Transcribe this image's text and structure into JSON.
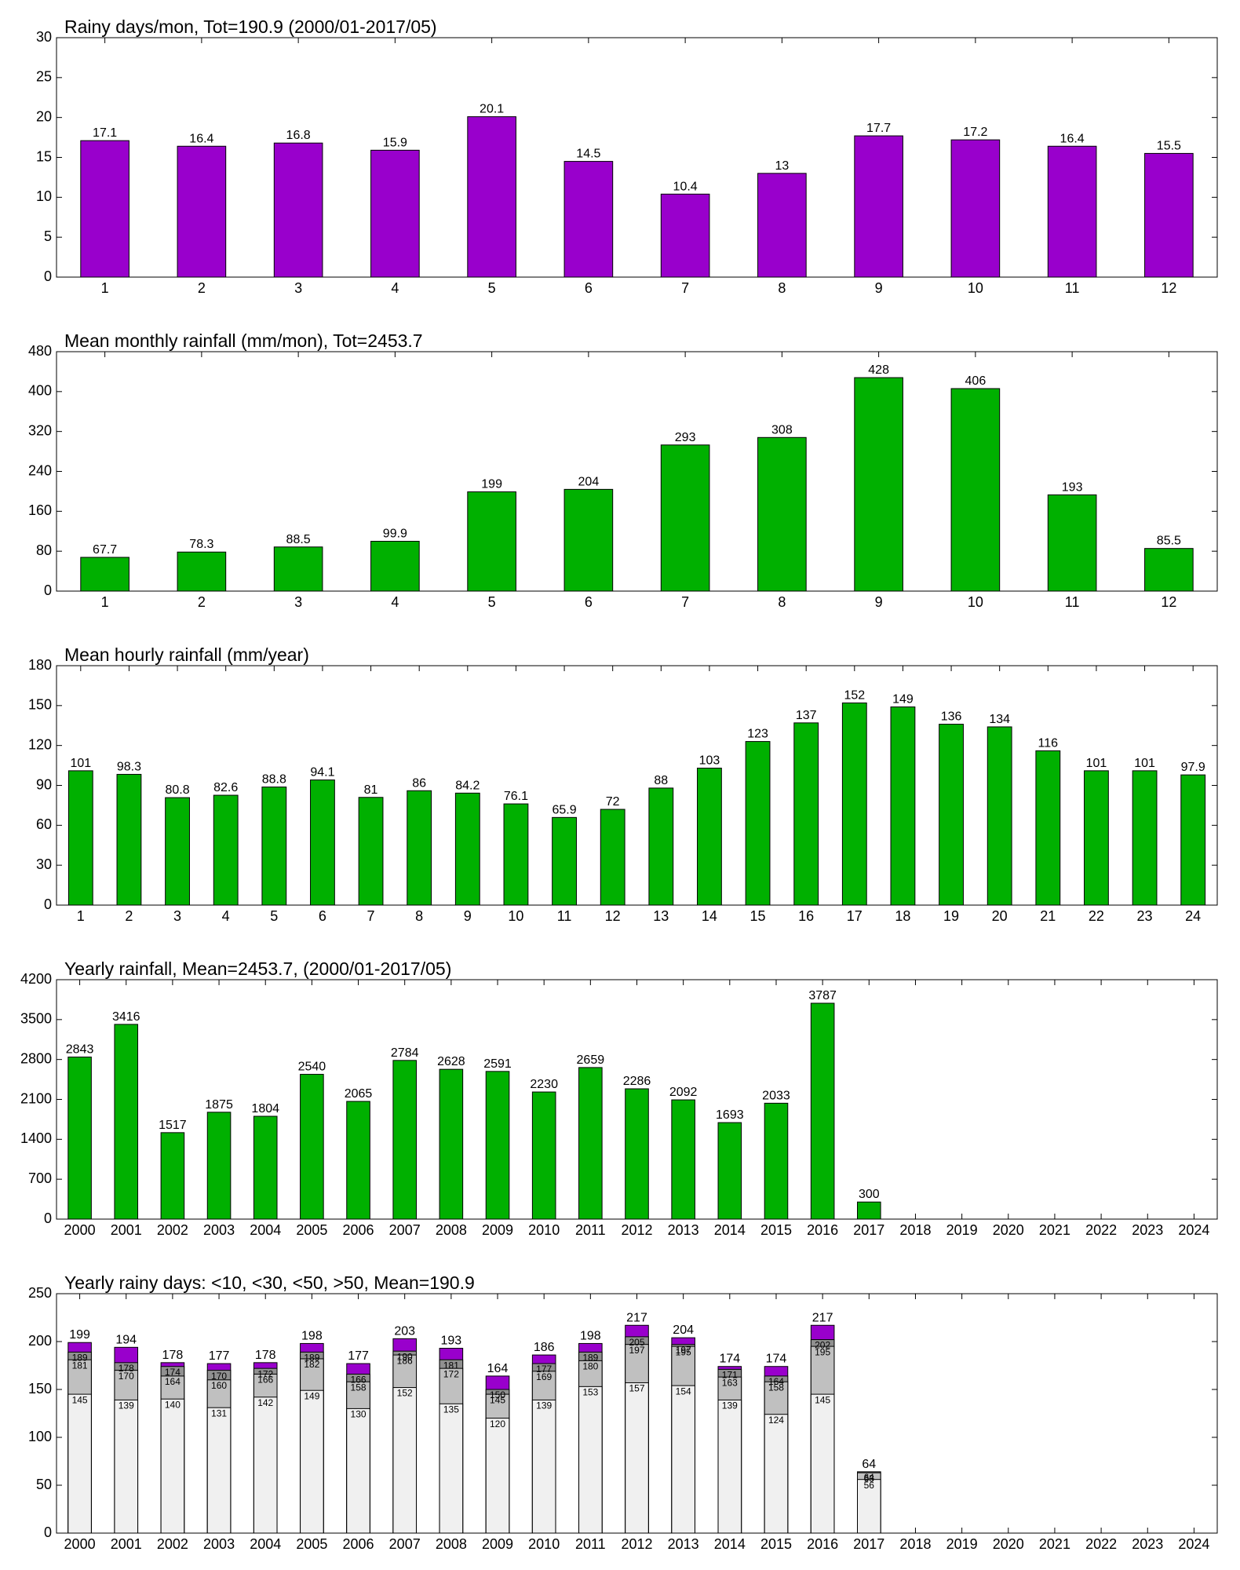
{
  "chart_data": [
    {
      "type": "bar",
      "title": "Rainy days/mon, Tot=190.9 (2000/01-2017/05)",
      "categories": [
        "1",
        "2",
        "3",
        "4",
        "5",
        "6",
        "7",
        "8",
        "9",
        "10",
        "11",
        "12"
      ],
      "values": [
        17.1,
        16.4,
        16.8,
        15.9,
        20.1,
        14.5,
        10.4,
        13,
        17.7,
        17.2,
        16.4,
        15.5
      ],
      "color": "#9900cc",
      "ylim": [
        0,
        30
      ],
      "yticks": [
        0,
        5,
        10,
        15,
        20,
        25,
        30
      ],
      "grid": false
    },
    {
      "type": "bar",
      "title": "Mean monthly rainfall (mm/mon), Tot=2453.7",
      "categories": [
        "1",
        "2",
        "3",
        "4",
        "5",
        "6",
        "7",
        "8",
        "9",
        "10",
        "11",
        "12"
      ],
      "values": [
        67.7,
        78.3,
        88.5,
        99.9,
        199,
        204,
        293,
        308,
        428,
        406,
        193,
        85.5
      ],
      "color": "#00b000",
      "ylim": [
        0,
        480
      ],
      "yticks": [
        0,
        80,
        160,
        240,
        320,
        400,
        480
      ],
      "grid": false
    },
    {
      "type": "bar",
      "title": "Mean hourly rainfall (mm/year)",
      "categories": [
        "1",
        "2",
        "3",
        "4",
        "5",
        "6",
        "7",
        "8",
        "9",
        "10",
        "11",
        "12",
        "13",
        "14",
        "15",
        "16",
        "17",
        "18",
        "19",
        "20",
        "21",
        "22",
        "23",
        "24"
      ],
      "values": [
        101,
        98.3,
        80.8,
        82.6,
        88.8,
        94.1,
        81,
        86,
        84.2,
        76.1,
        65.9,
        72,
        88,
        103,
        123,
        137,
        152,
        149,
        136,
        134,
        116,
        101,
        101,
        97.9
      ],
      "color": "#00b000",
      "ylim": [
        0,
        180
      ],
      "yticks": [
        0,
        30,
        60,
        90,
        120,
        150,
        180
      ],
      "grid": false
    },
    {
      "type": "bar",
      "title": "Yearly rainfall, Mean=2453.7, (2000/01-2017/05)",
      "categories": [
        "2000",
        "2001",
        "2002",
        "2003",
        "2004",
        "2005",
        "2006",
        "2007",
        "2008",
        "2009",
        "2010",
        "2011",
        "2012",
        "2013",
        "2014",
        "2015",
        "2016",
        "2017",
        "2018",
        "2019",
        "2020",
        "2021",
        "2022",
        "2023",
        "2024"
      ],
      "values": [
        2843,
        3416,
        1517,
        1875,
        1804,
        2540,
        2065,
        2784,
        2628,
        2591,
        2230,
        2659,
        2286,
        2092,
        1693,
        2033,
        3787,
        300,
        null,
        null,
        null,
        null,
        null,
        null,
        null
      ],
      "color": "#00b000",
      "ylim": [
        0,
        4200
      ],
      "yticks": [
        0,
        700,
        1400,
        2100,
        2800,
        3500,
        4200
      ],
      "grid": false
    },
    {
      "type": "overlay_bar",
      "title": "Yearly rainy days: <10, <30, <50, >50, Mean=190.9",
      "categories": [
        "2000",
        "2001",
        "2002",
        "2003",
        "2004",
        "2005",
        "2006",
        "2007",
        "2008",
        "2009",
        "2010",
        "2011",
        "2012",
        "2013",
        "2014",
        "2015",
        "2016",
        "2017",
        "2018",
        "2019",
        "2020",
        "2021",
        "2022",
        "2023",
        "2024"
      ],
      "series": [
        {
          "color": "#9900cc",
          "values": [
            199,
            194,
            178,
            177,
            178,
            198,
            177,
            203,
            193,
            164,
            186,
            198,
            217,
            204,
            174,
            174,
            217,
            64,
            null,
            null,
            null,
            null,
            null,
            null,
            null
          ]
        },
        {
          "color": "#909090",
          "values": [
            189,
            178,
            174,
            170,
            172,
            189,
            166,
            190,
            181,
            150,
            177,
            189,
            205,
            197,
            171,
            164,
            202,
            64,
            null,
            null,
            null,
            null,
            null,
            null,
            null
          ]
        },
        {
          "color": "#c0c0c0",
          "values": [
            181,
            170,
            164,
            160,
            166,
            182,
            158,
            186,
            172,
            145,
            169,
            180,
            197,
            195,
            163,
            158,
            195,
            63,
            null,
            null,
            null,
            null,
            null,
            null,
            null
          ]
        },
        {
          "color": "#f0f0f0",
          "values": [
            145,
            139,
            140,
            131,
            142,
            149,
            130,
            152,
            135,
            120,
            139,
            153,
            157,
            154,
            139,
            124,
            145,
            56,
            null,
            null,
            null,
            null,
            null,
            null,
            null
          ]
        }
      ],
      "ylim": [
        0,
        250
      ],
      "yticks": [
        0,
        50,
        100,
        150,
        200,
        250
      ],
      "grid": false
    }
  ]
}
